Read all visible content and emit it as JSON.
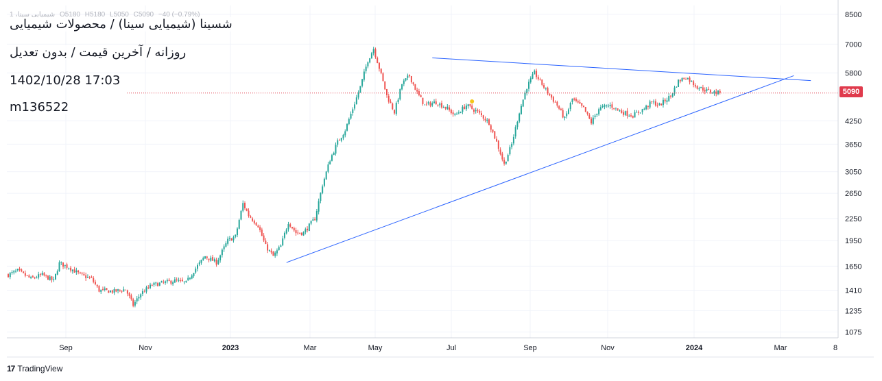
{
  "header": {
    "ohlc": {
      "symbol": "شیمیایی سینا، 1",
      "open": "O5180",
      "high": "H5180",
      "low": "L5050",
      "close": "C5090",
      "change": "−40 (−0.79%)"
    },
    "title": "شسینا (شیمیایی سینا) / محصولات شیمیایی",
    "subtitle": "روزانه / آخرین قیمت / بدون تعدیل",
    "datetime": "1402/10/28 17:03",
    "author": "m136522"
  },
  "brand": {
    "icon": "17",
    "name": "TradingView"
  },
  "colors": {
    "up": "#26a69a",
    "down": "#ef5350",
    "trendline": "#2962ff",
    "price_line": "#e03a4c",
    "grid": "#f0f3fa"
  },
  "chart_data": {
    "type": "candlestick",
    "scale": "log",
    "y_ticks": [
      1075,
      1235,
      1410,
      1650,
      1950,
      2250,
      2650,
      3050,
      3650,
      4250,
      5090,
      5800,
      7000,
      8500
    ],
    "y_tick_labels": [
      "1075",
      "1235",
      "1410",
      "1650",
      "1950",
      "2250",
      "2650",
      "3050",
      "3650",
      "4250",
      "5090",
      "5800",
      "7000",
      "8500"
    ],
    "ylim": [
      1035,
      9000
    ],
    "x_ticks": [
      {
        "label": "Sep",
        "bold": false
      },
      {
        "label": "Nov",
        "bold": false
      },
      {
        "label": "2023",
        "bold": true
      },
      {
        "label": "Mar",
        "bold": false
      },
      {
        "label": "May",
        "bold": false
      },
      {
        "label": "Jul",
        "bold": false
      },
      {
        "label": "Sep",
        "bold": false
      },
      {
        "label": "Nov",
        "bold": false
      },
      {
        "label": "2024",
        "bold": true
      },
      {
        "label": "Mar",
        "bold": false
      },
      {
        "label": "8",
        "bold": false
      }
    ],
    "last_price": 5090,
    "path_anchors": [
      [
        0,
        1560
      ],
      [
        5,
        1600
      ],
      [
        12,
        1520
      ],
      [
        18,
        1560
      ],
      [
        24,
        1500
      ],
      [
        27,
        1680
      ],
      [
        32,
        1640
      ],
      [
        38,
        1560
      ],
      [
        44,
        1520
      ],
      [
        48,
        1410
      ],
      [
        56,
        1400
      ],
      [
        62,
        1420
      ],
      [
        66,
        1280
      ],
      [
        70,
        1380
      ],
      [
        76,
        1460
      ],
      [
        82,
        1480
      ],
      [
        88,
        1500
      ],
      [
        94,
        1480
      ],
      [
        98,
        1600
      ],
      [
        104,
        1760
      ],
      [
        110,
        1690
      ],
      [
        116,
        1950
      ],
      [
        120,
        2000
      ],
      [
        124,
        2480
      ],
      [
        127,
        2300
      ],
      [
        132,
        2150
      ],
      [
        136,
        1880
      ],
      [
        140,
        1760
      ],
      [
        144,
        1880
      ],
      [
        148,
        2200
      ],
      [
        152,
        2050
      ],
      [
        156,
        2050
      ],
      [
        162,
        2250
      ],
      [
        166,
        2800
      ],
      [
        170,
        3300
      ],
      [
        174,
        3700
      ],
      [
        178,
        4000
      ],
      [
        182,
        4600
      ],
      [
        186,
        5300
      ],
      [
        190,
        6300
      ],
      [
        193,
        6800
      ],
      [
        196,
        6000
      ],
      [
        200,
        5000
      ],
      [
        204,
        4500
      ],
      [
        208,
        5400
      ],
      [
        212,
        5700
      ],
      [
        216,
        5100
      ],
      [
        220,
        4700
      ],
      [
        226,
        4800
      ],
      [
        232,
        4600
      ],
      [
        236,
        4400
      ],
      [
        242,
        4700
      ],
      [
        248,
        4500
      ],
      [
        254,
        4200
      ],
      [
        258,
        3700
      ],
      [
        262,
        3200
      ],
      [
        266,
        3650
      ],
      [
        270,
        4500
      ],
      [
        274,
        5300
      ],
      [
        278,
        5800
      ],
      [
        284,
        5200
      ],
      [
        290,
        4700
      ],
      [
        294,
        4300
      ],
      [
        298,
        4900
      ],
      [
        304,
        4600
      ],
      [
        308,
        4200
      ],
      [
        312,
        4600
      ],
      [
        318,
        4700
      ],
      [
        324,
        4500
      ],
      [
        330,
        4400
      ],
      [
        336,
        4600
      ],
      [
        340,
        4800
      ],
      [
        344,
        4700
      ],
      [
        350,
        5000
      ],
      [
        354,
        5500
      ],
      [
        358,
        5650
      ],
      [
        364,
        5300
      ],
      [
        370,
        5150
      ],
      [
        376,
        5090
      ]
    ],
    "trendlines": [
      {
        "name": "resistance",
        "from": [
          224,
          6400
        ],
        "to": [
          424,
          5520
        ]
      },
      {
        "name": "support",
        "from": [
          147,
          1690
        ],
        "to": [
          415,
          5700
        ]
      }
    ],
    "marker": {
      "index": 245,
      "price": 4820
    }
  }
}
